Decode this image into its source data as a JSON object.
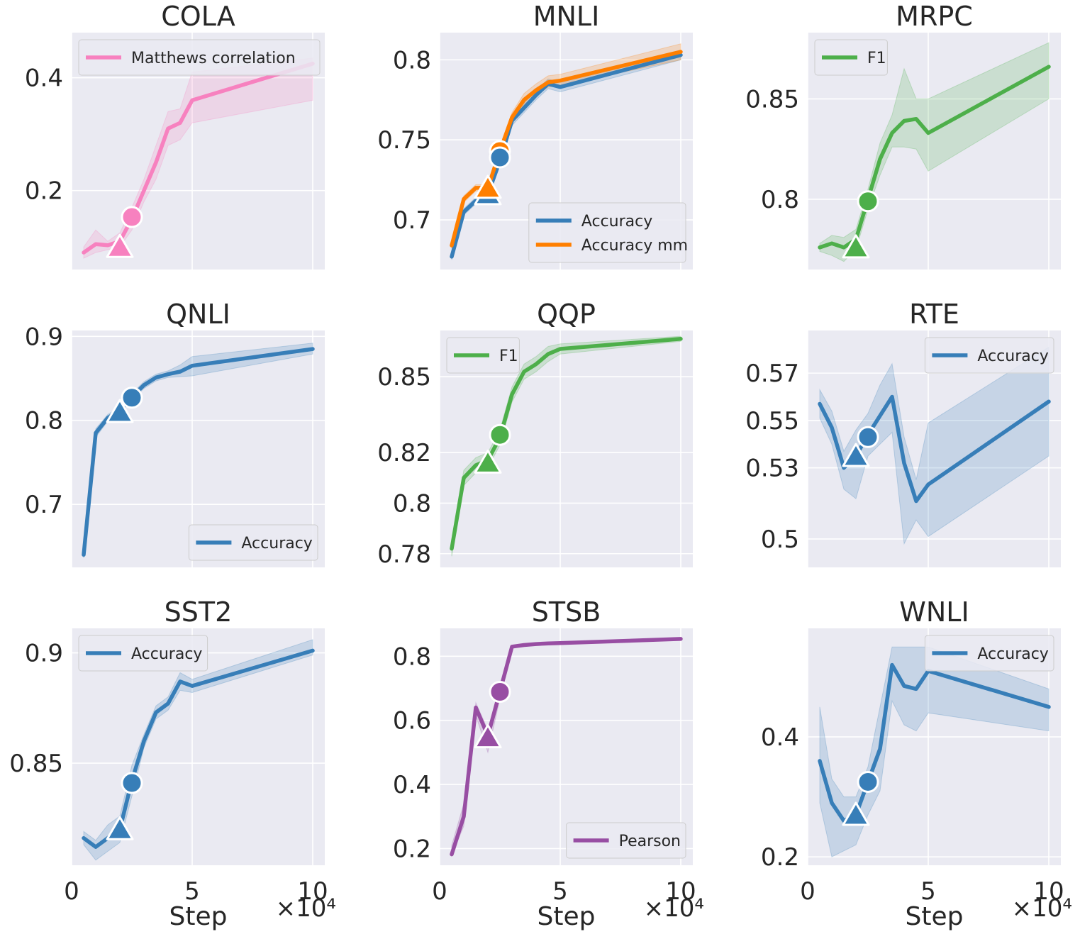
{
  "x_axis": {
    "label": "Step",
    "multiplier": "×10⁴",
    "ticks": [
      0,
      5,
      10
    ],
    "tick_labels": [
      "0",
      "5",
      "10"
    ],
    "xlim": [
      0,
      10.5
    ]
  },
  "colors": {
    "pink": "#f781bf",
    "blue": "#377eb8",
    "orange": "#ff7f00",
    "green": "#4daf4a",
    "purple": "#984ea3"
  },
  "chart_data": [
    {
      "name": "COLA",
      "type": "line",
      "title": "COLA",
      "ylim": [
        0.06,
        0.48
      ],
      "yticks": [
        0.2,
        0.4
      ],
      "ytick_labels": [
        "0.2",
        "0.4"
      ],
      "legend_pos": "top-left",
      "series": [
        {
          "name": "Matthews correlation",
          "color": "#f781bf",
          "x": [
            0.5,
            1,
            1.5,
            2,
            2.5,
            3,
            3.5,
            4,
            4.5,
            5,
            10
          ],
          "y": [
            0.09,
            0.105,
            0.103,
            0.11,
            0.15,
            0.2,
            0.25,
            0.31,
            0.32,
            0.36,
            0.425
          ],
          "lo": [
            0.08,
            0.09,
            0.095,
            0.1,
            0.13,
            0.18,
            0.22,
            0.28,
            0.29,
            0.32,
            0.36
          ],
          "hi": [
            0.1,
            0.13,
            0.11,
            0.125,
            0.17,
            0.22,
            0.28,
            0.34,
            0.345,
            0.41,
            0.435
          ]
        }
      ],
      "markers": [
        {
          "shape": "triangle",
          "x": 2,
          "y": 0.1,
          "color": "#f781bf"
        },
        {
          "shape": "circle",
          "x": 2.5,
          "y": 0.153,
          "color": "#f781bf"
        }
      ]
    },
    {
      "name": "MNLI",
      "type": "line",
      "title": "MNLI",
      "ylim": [
        0.669,
        0.817
      ],
      "yticks": [
        0.7,
        0.75,
        0.8
      ],
      "ytick_labels": [
        "0.7",
        "0.75",
        "0.8"
      ],
      "legend_pos": "bottom-right",
      "series": [
        {
          "name": "Accuracy",
          "color": "#377eb8",
          "x": [
            0.5,
            1,
            1.5,
            2,
            2.5,
            3,
            3.5,
            4,
            4.5,
            5,
            10
          ],
          "y": [
            0.677,
            0.705,
            0.712,
            0.716,
            0.737,
            0.762,
            0.77,
            0.778,
            0.785,
            0.783,
            0.803
          ],
          "lo": [
            0.675,
            0.703,
            0.71,
            0.714,
            0.734,
            0.759,
            0.767,
            0.775,
            0.782,
            0.78,
            0.8
          ],
          "hi": [
            0.679,
            0.707,
            0.714,
            0.718,
            0.74,
            0.765,
            0.773,
            0.781,
            0.788,
            0.786,
            0.806
          ]
        },
        {
          "name": "Accuracy mm",
          "color": "#ff7f00",
          "x": [
            0.5,
            1,
            1.5,
            2,
            2.5,
            3,
            3.5,
            4,
            4.5,
            5,
            10
          ],
          "y": [
            0.684,
            0.713,
            0.72,
            0.72,
            0.743,
            0.764,
            0.775,
            0.781,
            0.786,
            0.787,
            0.805
          ],
          "lo": [
            0.682,
            0.711,
            0.718,
            0.718,
            0.74,
            0.761,
            0.772,
            0.778,
            0.783,
            0.784,
            0.8
          ],
          "hi": [
            0.686,
            0.715,
            0.722,
            0.722,
            0.746,
            0.767,
            0.779,
            0.785,
            0.79,
            0.791,
            0.81
          ]
        }
      ],
      "markers": [
        {
          "shape": "triangle",
          "x": 2,
          "y": 0.716,
          "color": "#377eb8"
        },
        {
          "shape": "triangle",
          "x": 2,
          "y": 0.72,
          "color": "#ff7f00"
        },
        {
          "shape": "circle",
          "x": 2.5,
          "y": 0.743,
          "color": "#ff7f00"
        },
        {
          "shape": "circle",
          "x": 2.5,
          "y": 0.739,
          "color": "#377eb8"
        }
      ]
    },
    {
      "name": "MRPC",
      "type": "line",
      "title": "MRPC",
      "ylim": [
        0.765,
        0.883
      ],
      "yticks": [
        0.8,
        0.85
      ],
      "ytick_labels": [
        "0.8",
        "0.85"
      ],
      "legend_pos": "top-left",
      "series": [
        {
          "name": "F1",
          "color": "#4daf4a",
          "x": [
            0.5,
            1,
            1.5,
            2,
            2.5,
            3,
            3.5,
            4,
            4.5,
            5,
            10
          ],
          "y": [
            0.776,
            0.778,
            0.776,
            0.78,
            0.8,
            0.82,
            0.833,
            0.839,
            0.84,
            0.833,
            0.866
          ],
          "lo": [
            0.774,
            0.772,
            0.769,
            0.775,
            0.795,
            0.812,
            0.826,
            0.826,
            0.825,
            0.814,
            0.85
          ],
          "hi": [
            0.778,
            0.782,
            0.781,
            0.785,
            0.805,
            0.828,
            0.842,
            0.865,
            0.85,
            0.85,
            0.878
          ]
        }
      ],
      "markers": [
        {
          "shape": "triangle",
          "x": 2,
          "y": 0.776,
          "color": "#4daf4a"
        },
        {
          "shape": "circle",
          "x": 2.5,
          "y": 0.799,
          "color": "#4daf4a"
        }
      ]
    },
    {
      "name": "QNLI",
      "type": "line",
      "title": "QNLI",
      "ylim": [
        0.625,
        0.907
      ],
      "yticks": [
        0.7,
        0.8,
        0.9
      ],
      "ytick_labels": [
        "0.7",
        "0.8",
        "0.9"
      ],
      "legend_pos": "bottom-right",
      "series": [
        {
          "name": "Accuracy",
          "color": "#377eb8",
          "x": [
            0.5,
            1,
            1.5,
            2,
            2.5,
            3,
            3.5,
            4,
            4.5,
            5,
            10
          ],
          "y": [
            0.64,
            0.785,
            0.803,
            0.812,
            0.828,
            0.842,
            0.851,
            0.855,
            0.858,
            0.865,
            0.885
          ],
          "lo": [
            0.636,
            0.78,
            0.799,
            0.808,
            0.824,
            0.838,
            0.847,
            0.851,
            0.852,
            0.853,
            0.879
          ],
          "hi": [
            0.644,
            0.79,
            0.807,
            0.816,
            0.832,
            0.846,
            0.855,
            0.859,
            0.866,
            0.876,
            0.892
          ]
        }
      ],
      "markers": [
        {
          "shape": "triangle",
          "x": 2,
          "y": 0.81,
          "color": "#377eb8"
        },
        {
          "shape": "circle",
          "x": 2.5,
          "y": 0.827,
          "color": "#377eb8"
        }
      ]
    },
    {
      "name": "QQP",
      "type": "line",
      "title": "QQP",
      "ylim": [
        0.7746,
        0.8683
      ],
      "yticks": [
        0.78,
        0.8,
        0.82,
        0.85
      ],
      "ytick_labels": [
        "0.78",
        "0.8",
        "0.82",
        "0.85"
      ],
      "legend_pos": "top-left",
      "series": [
        {
          "name": "F1",
          "color": "#4daf4a",
          "x": [
            0.5,
            1,
            1.5,
            2,
            2.5,
            3,
            3.5,
            4,
            4.5,
            5,
            10
          ],
          "y": [
            0.782,
            0.81,
            0.815,
            0.817,
            0.826,
            0.843,
            0.852,
            0.855,
            0.859,
            0.861,
            0.865
          ],
          "lo": [
            0.779,
            0.807,
            0.812,
            0.814,
            0.823,
            0.84,
            0.849,
            0.852,
            0.856,
            0.859,
            0.864
          ],
          "hi": [
            0.785,
            0.813,
            0.818,
            0.82,
            0.829,
            0.846,
            0.855,
            0.858,
            0.862,
            0.863,
            0.866
          ]
        }
      ],
      "markers": [
        {
          "shape": "triangle",
          "x": 2,
          "y": 0.816,
          "color": "#4daf4a"
        },
        {
          "shape": "circle",
          "x": 2.5,
          "y": 0.827,
          "color": "#4daf4a"
        }
      ]
    },
    {
      "name": "RTE",
      "type": "line",
      "title": "RTE",
      "ylim": [
        0.488,
        0.588
      ],
      "yticks": [
        0.5,
        0.53,
        0.55,
        0.57
      ],
      "ytick_labels": [
        "0.5",
        "0.53",
        "0.55",
        "0.57"
      ],
      "legend_pos": "top-right",
      "series": [
        {
          "name": "Accuracy",
          "color": "#377eb8",
          "x": [
            0.5,
            1,
            1.5,
            2,
            2.5,
            3,
            3.5,
            4,
            4.5,
            5,
            10
          ],
          "y": [
            0.557,
            0.547,
            0.53,
            0.535,
            0.544,
            0.552,
            0.56,
            0.532,
            0.516,
            0.523,
            0.558
          ],
          "lo": [
            0.551,
            0.54,
            0.521,
            0.517,
            0.535,
            0.54,
            0.545,
            0.498,
            0.508,
            0.501,
            0.535
          ],
          "hi": [
            0.563,
            0.554,
            0.537,
            0.546,
            0.553,
            0.565,
            0.574,
            0.543,
            0.525,
            0.549,
            0.581
          ]
        }
      ],
      "markers": [
        {
          "shape": "triangle",
          "x": 2,
          "y": 0.535,
          "color": "#377eb8"
        },
        {
          "shape": "circle",
          "x": 2.5,
          "y": 0.543,
          "color": "#377eb8"
        }
      ]
    },
    {
      "name": "SST2",
      "type": "line",
      "title": "SST2",
      "ylim": [
        0.8037,
        0.9111
      ],
      "yticks": [
        0.85,
        0.9
      ],
      "ytick_labels": [
        "0.85",
        "0.9"
      ],
      "legend_pos": "top-left",
      "series": [
        {
          "name": "Accuracy",
          "color": "#377eb8",
          "x": [
            0.5,
            1,
            1.5,
            2,
            2.5,
            3,
            3.5,
            4,
            4.5,
            5,
            10
          ],
          "y": [
            0.816,
            0.812,
            0.816,
            0.82,
            0.842,
            0.86,
            0.873,
            0.877,
            0.887,
            0.885,
            0.901
          ],
          "lo": [
            0.813,
            0.806,
            0.81,
            0.814,
            0.835,
            0.857,
            0.87,
            0.874,
            0.883,
            0.882,
            0.899
          ],
          "hi": [
            0.819,
            0.815,
            0.822,
            0.826,
            0.849,
            0.863,
            0.876,
            0.88,
            0.891,
            0.888,
            0.906
          ]
        }
      ],
      "markers": [
        {
          "shape": "triangle",
          "x": 2,
          "y": 0.82,
          "color": "#377eb8"
        },
        {
          "shape": "circle",
          "x": 2.5,
          "y": 0.841,
          "color": "#377eb8"
        }
      ]
    },
    {
      "name": "STSB",
      "type": "line",
      "title": "STSB",
      "ylim": [
        0.148,
        0.887
      ],
      "yticks": [
        0.2,
        0.4,
        0.6,
        0.8
      ],
      "ytick_labels": [
        "0.2",
        "0.4",
        "0.6",
        "0.8"
      ],
      "legend_pos": "bottom-right",
      "series": [
        {
          "name": "Pearson",
          "color": "#984ea3",
          "x": [
            0.5,
            1,
            1.5,
            2,
            2.5,
            3,
            3.5,
            4,
            4.5,
            5,
            10
          ],
          "y": [
            0.182,
            0.3,
            0.64,
            0.552,
            0.69,
            0.83,
            0.835,
            0.838,
            0.84,
            0.841,
            0.854
          ],
          "lo": [
            0.18,
            0.27,
            0.615,
            0.5,
            0.668,
            0.828,
            0.833,
            0.836,
            0.838,
            0.84,
            0.853
          ],
          "hi": [
            0.21,
            0.34,
            0.655,
            0.57,
            0.712,
            0.832,
            0.837,
            0.84,
            0.842,
            0.843,
            0.856
          ]
        }
      ],
      "markers": [
        {
          "shape": "triangle",
          "x": 2,
          "y": 0.547,
          "color": "#984ea3"
        },
        {
          "shape": "circle",
          "x": 2.5,
          "y": 0.689,
          "color": "#984ea3"
        }
      ]
    },
    {
      "name": "WNLI",
      "type": "line",
      "title": "WNLI",
      "ylim": [
        0.186,
        0.581
      ],
      "yticks": [
        0.2,
        0.4
      ],
      "ytick_labels": [
        "0.2",
        "0.4"
      ],
      "legend_pos": "top-right",
      "series": [
        {
          "name": "Accuracy",
          "color": "#377eb8",
          "x": [
            0.5,
            1,
            1.5,
            2,
            2.5,
            3,
            3.5,
            4,
            4.5,
            5,
            10
          ],
          "y": [
            0.36,
            0.29,
            0.26,
            0.27,
            0.325,
            0.38,
            0.52,
            0.485,
            0.48,
            0.51,
            0.45
          ],
          "lo": [
            0.29,
            0.2,
            0.21,
            0.22,
            0.27,
            0.31,
            0.46,
            0.42,
            0.41,
            0.44,
            0.41
          ],
          "hi": [
            0.45,
            0.33,
            0.3,
            0.3,
            0.35,
            0.45,
            0.55,
            0.55,
            0.55,
            0.55,
            0.48
          ]
        }
      ],
      "markers": [
        {
          "shape": "triangle",
          "x": 2,
          "y": 0.27,
          "color": "#377eb8"
        },
        {
          "shape": "circle",
          "x": 2.5,
          "y": 0.325,
          "color": "#377eb8"
        }
      ]
    }
  ]
}
